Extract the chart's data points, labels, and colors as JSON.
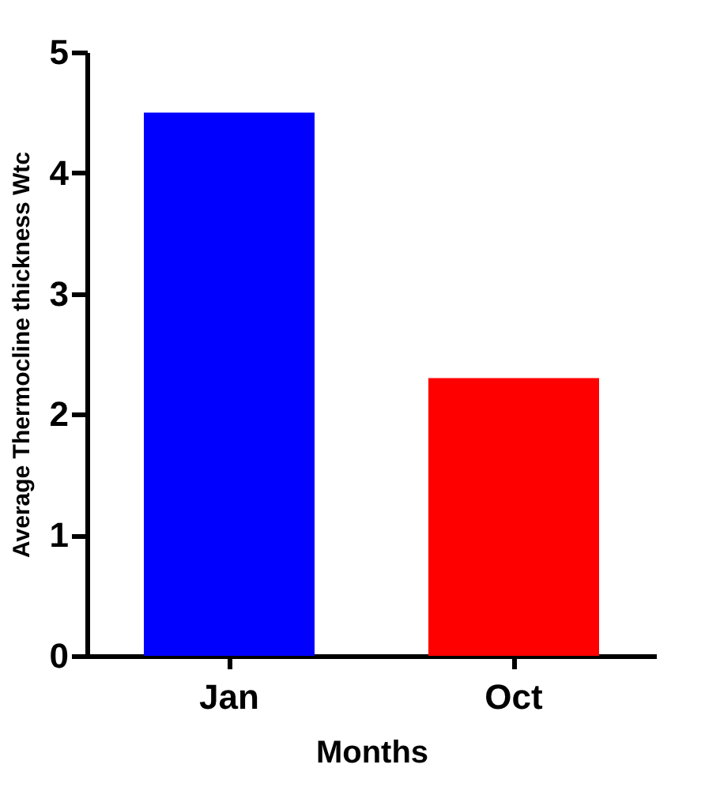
{
  "chart_data": {
    "type": "bar",
    "xlabel": "Months",
    "ylabel": "Average Thermocline thickness Wtc",
    "categories": [
      "Jan",
      "Oct"
    ],
    "values": [
      4.5,
      2.3
    ],
    "colors": [
      "#0000ff",
      "#ff0000"
    ],
    "ylim": [
      0,
      5
    ],
    "yticks": [
      0,
      1,
      2,
      3,
      4,
      5
    ],
    "grid": false
  }
}
